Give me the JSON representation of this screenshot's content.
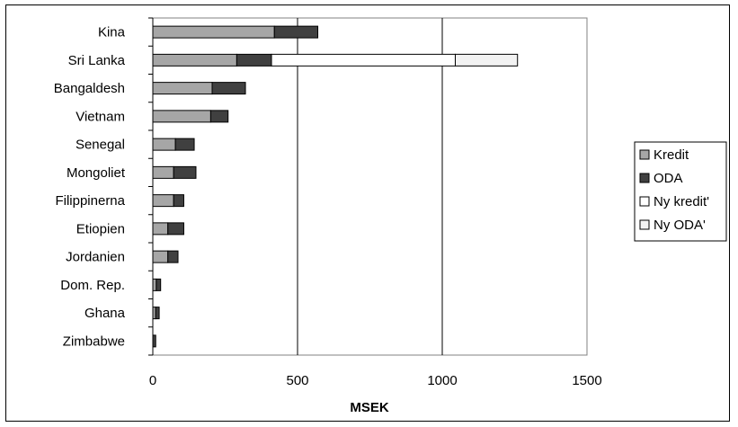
{
  "chart_data": {
    "type": "bar",
    "orientation": "horizontal",
    "stacked": true,
    "categories": [
      "Kina",
      "Sri Lanka",
      "Bangaldesh",
      "Vietnam",
      "Senegal",
      "Mongoliet",
      "Filippinerna",
      "Etiopien",
      "Jordanien",
      "Dom. Rep.",
      "Ghana",
      "Zimbabwe"
    ],
    "series": [
      {
        "name": "Kredit",
        "color": "#a6a6a6",
        "values": [
          420,
          290,
          205,
          200,
          78,
          72,
          72,
          52,
          52,
          12,
          10,
          0
        ]
      },
      {
        "name": "ODA",
        "color": "#404040",
        "values": [
          150,
          120,
          115,
          60,
          65,
          77,
          35,
          55,
          35,
          15,
          12,
          10
        ]
      },
      {
        "name": "Ny kredit'",
        "color": "#ffffff",
        "values": [
          0,
          635,
          0,
          0,
          0,
          0,
          0,
          0,
          0,
          0,
          0,
          0
        ]
      },
      {
        "name": "Ny ODA'",
        "color": "#f2f2f2",
        "values": [
          0,
          215,
          0,
          0,
          0,
          0,
          0,
          0,
          0,
          0,
          0,
          0
        ]
      }
    ],
    "xlabel": "MSEK",
    "xticks": [
      0,
      500,
      1000,
      1500
    ],
    "xlim": [
      0,
      1500
    ],
    "grid": "vertical-major",
    "legend_position": "right"
  }
}
